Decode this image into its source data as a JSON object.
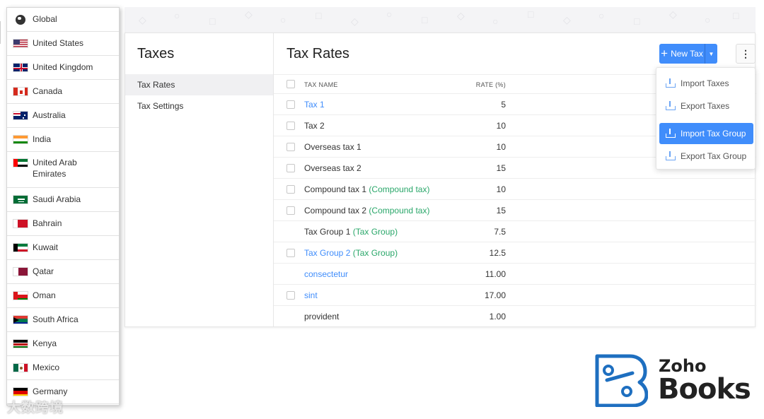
{
  "countries": [
    {
      "label": "Global"
    },
    {
      "label": "United States"
    },
    {
      "label": "United Kingdom"
    },
    {
      "label": "Canada"
    },
    {
      "label": "Australia"
    },
    {
      "label": "India"
    },
    {
      "label": "United Arab Emirates"
    },
    {
      "label": "Saudi Arabia"
    },
    {
      "label": "Bahrain"
    },
    {
      "label": "Kuwait"
    },
    {
      "label": "Qatar"
    },
    {
      "label": "Oman"
    },
    {
      "label": "South Africa"
    },
    {
      "label": "Kenya"
    },
    {
      "label": "Mexico"
    },
    {
      "label": "Germany"
    }
  ],
  "watermark": "大数跨境",
  "leftnav": {
    "title": "Taxes",
    "items": [
      {
        "label": "Tax Rates"
      },
      {
        "label": "Tax Settings"
      }
    ]
  },
  "content": {
    "title": "Tax Rates",
    "new_button": "New Tax",
    "columns": {
      "name": "TAX NAME",
      "rate": "RATE (%)"
    },
    "rows": [
      {
        "name": "Tax 1",
        "tag": "",
        "rate": "5"
      },
      {
        "name": "Tax 2",
        "tag": "",
        "rate": "10"
      },
      {
        "name": "Overseas tax 1",
        "tag": "",
        "rate": "10"
      },
      {
        "name": "Overseas tax 2",
        "tag": "",
        "rate": "15"
      },
      {
        "name": "Compound tax 1",
        "tag": "(Compound tax)",
        "rate": "10"
      },
      {
        "name": "Compound tax 2",
        "tag": "(Compound tax)",
        "rate": "15"
      },
      {
        "name": "Tax Group 1",
        "tag": "(Tax Group)",
        "rate": "7.5"
      },
      {
        "name": "Tax Group 2",
        "tag": "(Tax Group)",
        "rate": "12.5"
      },
      {
        "name": "consectetur",
        "tag": "",
        "rate": "11.00"
      },
      {
        "name": "sint",
        "tag": "",
        "rate": "17.00"
      },
      {
        "name": "provident",
        "tag": "",
        "rate": "1.00"
      }
    ]
  },
  "menu": {
    "items": [
      {
        "label": "Import Taxes"
      },
      {
        "label": "Export Taxes"
      },
      {
        "label": "Import Tax Group"
      },
      {
        "label": "Export Tax Group"
      }
    ]
  },
  "logo": {
    "line1": "Zoho",
    "line2": "Books"
  },
  "colors": {
    "accent": "#408dfb",
    "tag": "#2aa76a"
  }
}
